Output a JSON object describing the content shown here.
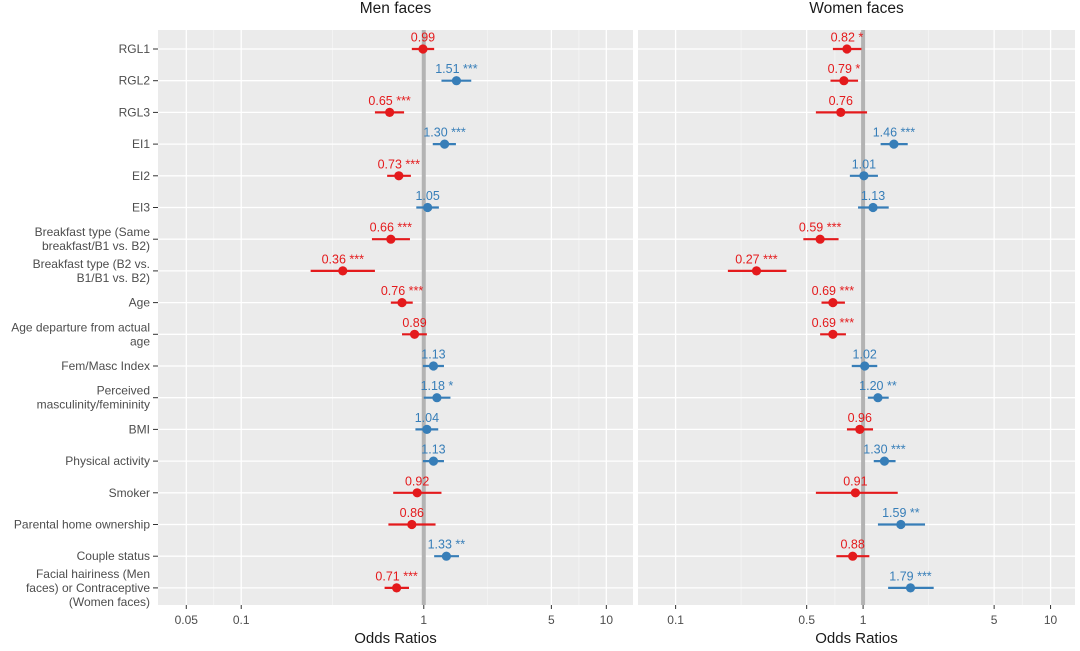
{
  "chart_data": {
    "type": "forest",
    "xlabel": "Odds Ratios",
    "x_scale": "log",
    "reference_line": 1,
    "colors": {
      "below_one": "#E41A1C",
      "above_one": "#377EB8",
      "reference": "#B3B3B3"
    },
    "rows": [
      "RGL1",
      "RGL2",
      "RGL3",
      "EI1",
      "EI2",
      "EI3",
      "Breakfast type (Same\nbreakfast/B1 vs. B2)",
      "Breakfast type (B2 vs.\nB1/B1 vs. B2)",
      "Age",
      "Age departure from actual\nage",
      "Fem/Masc Index",
      "Perceived\nmasculinity/femininity",
      "BMI",
      "Physical activity",
      "Smoker",
      "Parental home ownership",
      "Couple status",
      "Facial hairiness (Men\nfaces) or Contraceptive\n(Women faces)"
    ],
    "panels": [
      {
        "title": "Men faces",
        "xlim": [
          0.035,
          14
        ],
        "ticks": [
          0.05,
          0.1,
          1,
          5,
          10
        ],
        "tick_labels": [
          "0.05",
          "0.1",
          "1",
          "5",
          "10"
        ],
        "estimates": [
          0.99,
          1.51,
          0.65,
          1.3,
          0.73,
          1.05,
          0.66,
          0.36,
          0.76,
          0.89,
          1.13,
          1.18,
          1.04,
          1.13,
          0.92,
          0.86,
          1.33,
          0.71
        ],
        "ci_low": [
          0.86,
          1.25,
          0.54,
          1.12,
          0.63,
          0.91,
          0.52,
          0.24,
          0.66,
          0.76,
          0.99,
          1.0,
          0.9,
          0.99,
          0.68,
          0.64,
          1.14,
          0.61
        ],
        "ci_high": [
          1.14,
          1.82,
          0.78,
          1.5,
          0.85,
          1.21,
          0.84,
          0.54,
          0.87,
          1.04,
          1.29,
          1.4,
          1.2,
          1.29,
          1.25,
          1.16,
          1.56,
          0.83
        ],
        "labels": [
          "0.99",
          "1.51 ***",
          "0.65 ***",
          "1.30 ***",
          "0.73 ***",
          "1.05",
          "0.66 ***",
          "0.36 ***",
          "0.76 ***",
          "0.89",
          "1.13",
          "1.18 *",
          "1.04",
          "1.13",
          "0.92",
          "0.86",
          "1.33 **",
          "0.71 ***"
        ]
      },
      {
        "title": "Women faces",
        "xlim": [
          0.063,
          13.5
        ],
        "ticks": [
          0.1,
          0.5,
          1,
          5,
          10
        ],
        "tick_labels": [
          "0.1",
          "0.5",
          "1",
          "5",
          "10"
        ],
        "estimates": [
          0.82,
          0.79,
          0.76,
          1.46,
          1.01,
          1.13,
          0.59,
          0.27,
          0.69,
          0.69,
          1.02,
          1.2,
          0.96,
          1.3,
          0.91,
          1.59,
          0.88,
          1.79
        ],
        "ci_low": [
          0.69,
          0.67,
          0.56,
          1.24,
          0.85,
          0.94,
          0.48,
          0.19,
          0.6,
          0.59,
          0.87,
          1.06,
          0.82,
          1.14,
          0.56,
          1.2,
          0.72,
          1.36
        ],
        "ci_high": [
          0.98,
          0.94,
          1.05,
          1.73,
          1.2,
          1.37,
          0.74,
          0.39,
          0.8,
          0.81,
          1.19,
          1.37,
          1.13,
          1.49,
          1.53,
          2.14,
          1.08,
          2.38
        ],
        "labels": [
          "0.82 *",
          "0.79 *",
          "0.76",
          "1.46 ***",
          "1.01",
          "1.13",
          "0.59 ***",
          "0.27 ***",
          "0.69 ***",
          "0.69 ***",
          "1.02",
          "1.20 **",
          "0.96",
          "1.30 ***",
          "0.91",
          "1.59 **",
          "0.88",
          "1.79 ***"
        ]
      }
    ]
  }
}
